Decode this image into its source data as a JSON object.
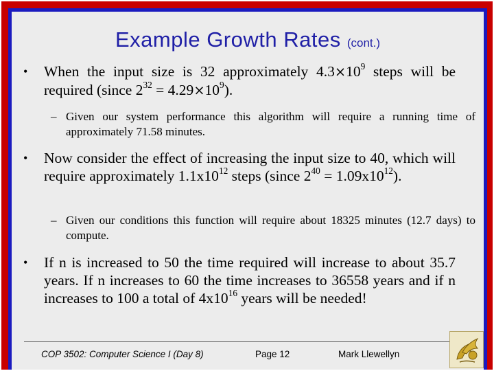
{
  "slide": {
    "title_main": "Example Growth Rates",
    "title_sub": "(cont.)"
  },
  "bullets": [
    {
      "pre": "When the input size is 32 approximately 4.3",
      "times1": "×",
      "base1": "10",
      "exp1": "9",
      "mid1": " steps will be required (since 2",
      "exp2": "32",
      "mid2": " = 4.29",
      "times2": "×",
      "base2": "10",
      "exp3": "9",
      "post": ")."
    },
    {
      "pre": "Now consider the effect of increasing the input size to 40, which will require approximately 1.1x10",
      "exp1": "12",
      "mid1": " steps (since 2",
      "exp2": "40",
      "mid2": " = 1.09x10",
      "exp3": "12",
      "post": ")."
    },
    {
      "pre": "If n is increased to 50 the time required will increase to about 35.7 years.  If n increases to 60 the time increases to 36558 years and if n increases to 100 a total of 4x10",
      "exp1": "16",
      "post": " years will be needed!"
    }
  ],
  "subbullets": [
    "Given our system performance this algorithm will require a running time of approximately 71.58 minutes.",
    "Given our conditions this function will require about 18325 minutes (12.7 days) to compute."
  ],
  "markers": {
    "bullet": "•",
    "dash": "–"
  },
  "footer": {
    "course": "COP 3502: Computer Science I  (Day 8)",
    "page": "Page 12",
    "author": "Mark Llewellyn"
  },
  "colors": {
    "title": "#1f1fa6",
    "frame_outer": "#c80000",
    "frame_inner": "#1b1bbf",
    "slide_bg": "#ececec",
    "logo_gold": "#c9a227"
  },
  "icons": {
    "logo": "pegasus-logo-icon"
  }
}
